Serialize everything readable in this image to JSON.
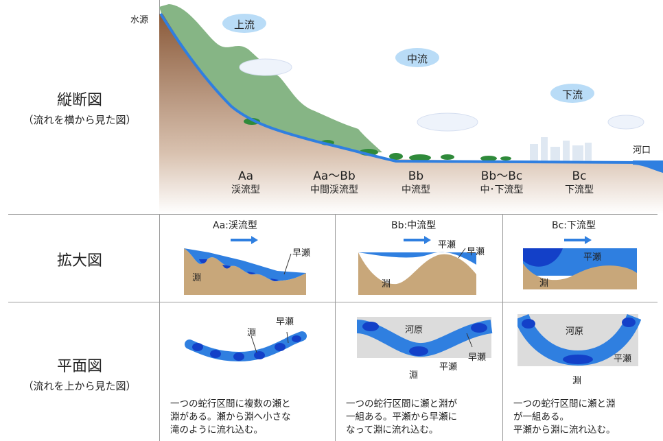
{
  "rows": {
    "longitudinal": {
      "title": "縦断図",
      "subtitle": "（流れを横から見た図）"
    },
    "enlarged": {
      "title": "拡大図"
    },
    "plan": {
      "title": "平面図",
      "subtitle": "（流れを上から見た図）"
    }
  },
  "profile": {
    "source": "水源",
    "mouth": "河口",
    "upstream": "上流",
    "midstream": "中流",
    "downstream": "下流"
  },
  "types": [
    {
      "code": "Aa",
      "name": "渓流型"
    },
    {
      "code": "Aa〜Bb",
      "name": "中間渓流型"
    },
    {
      "code": "Bb",
      "name": "中流型"
    },
    {
      "code": "Bb〜Bc",
      "name": "中･下流型"
    },
    {
      "code": "Bc",
      "name": "下流型"
    }
  ],
  "enlarged": {
    "aa": {
      "title": "Aa:渓流型",
      "rapid": "早瀬",
      "pool": "淵"
    },
    "bb": {
      "title": "Bb:中流型",
      "flat": "平瀬",
      "rapid": "早瀬",
      "pool": "淵"
    },
    "bc": {
      "title": "Bc:下流型",
      "flat": "平瀬",
      "pool": "淵"
    }
  },
  "plan": {
    "aa": {
      "pool": "淵",
      "rapid": "早瀬"
    },
    "bb": {
      "gravel": "河原",
      "rapid": "早瀬",
      "flat": "平瀬",
      "pool": "淵"
    },
    "bc": {
      "gravel": "河原",
      "flat": "平瀬",
      "pool": "淵"
    }
  },
  "descriptions": {
    "aa": [
      "一つの蛇行区間に複数の瀬と",
      "淵がある。瀬から淵へ小さな",
      "滝のように流れ込む。"
    ],
    "bb": [
      "一つの蛇行区間に瀬と淵が",
      "一組ある。平瀬から早瀬に",
      "なって淵に流れ込む。"
    ],
    "bc": [
      "一つの蛇行区間に瀬と淵",
      "が一組ある。",
      "平瀬から淵に流れ込む。"
    ]
  },
  "colors": {
    "water": "#2f7fe0",
    "deep": "#1340c8",
    "land": "#c8a77a",
    "forest": "#7fb27a",
    "cloud": "#b9dcf7"
  }
}
